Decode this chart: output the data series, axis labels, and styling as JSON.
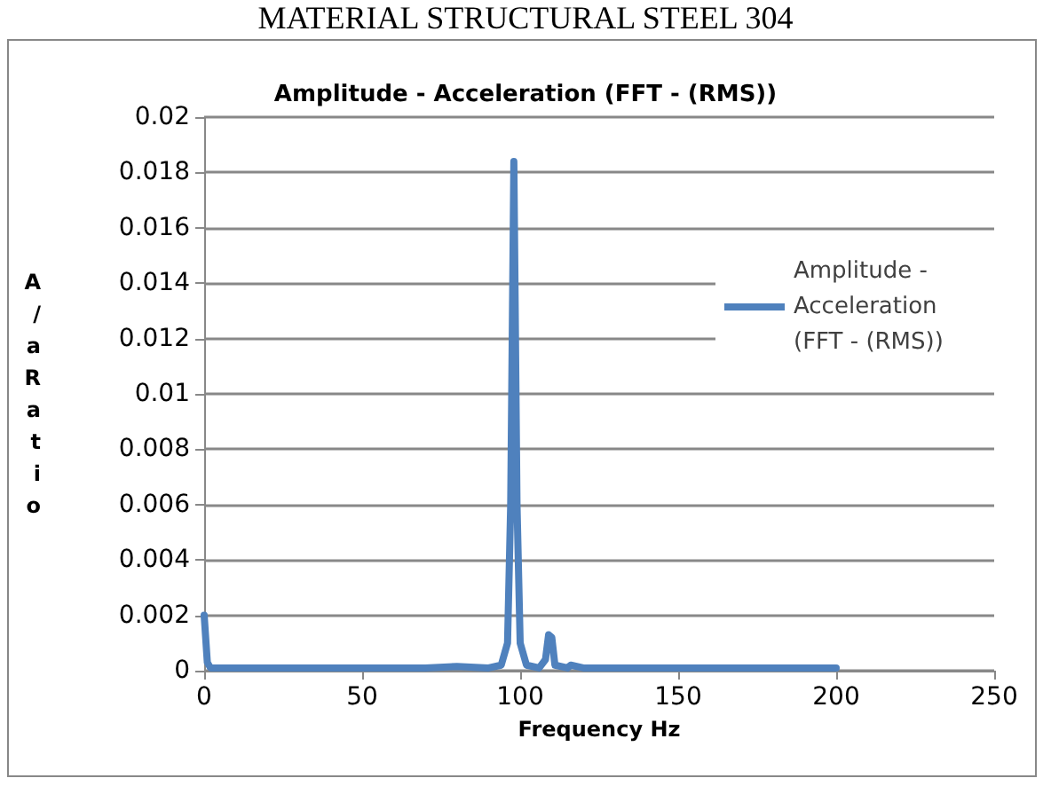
{
  "chart_data": {
    "type": "line",
    "title": "Amplitude - Acceleration (FFT - (RMS))",
    "annotations": [
      "MATERIAL STRUCTURAL STEEL 304"
    ],
    "xlabel": "Frequency Hz",
    "ylabel": "A/aRatio",
    "series": [
      {
        "name": "Amplitude - Acceleration (FFT - (RMS))",
        "color": "#4f81bd",
        "x": [
          0,
          1,
          2,
          10,
          30,
          50,
          70,
          80,
          90,
          94,
          96,
          97,
          98,
          99,
          100,
          102,
          106,
          108,
          109,
          110,
          111,
          115,
          116,
          120,
          150,
          200
        ],
        "values": [
          0.002,
          0.0003,
          0.0001,
          0.0001,
          0.0001,
          0.0001,
          0.0001,
          0.00015,
          0.0001,
          0.0002,
          0.001,
          0.006,
          0.0184,
          0.006,
          0.001,
          0.0002,
          0.0001,
          0.0004,
          0.0013,
          0.0012,
          0.0002,
          0.0001,
          0.0002,
          0.0001,
          0.0001,
          0.0001
        ]
      }
    ],
    "xlim": [
      0,
      250
    ],
    "xticks": [
      0,
      50,
      100,
      150,
      200,
      250
    ],
    "ylim": [
      0,
      0.02
    ],
    "yticks": [
      0,
      0.002,
      0.004,
      0.006,
      0.008,
      0.01,
      0.012,
      0.014,
      0.016,
      0.018,
      0.02
    ],
    "grid": "y",
    "legend": "right",
    "marker": "none",
    "line_style": "solid"
  }
}
